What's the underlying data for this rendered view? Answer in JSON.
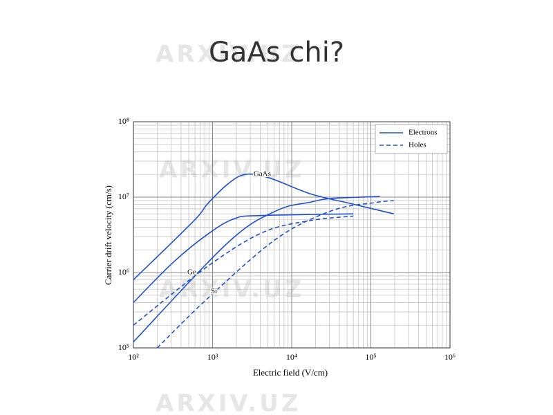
{
  "title": "GaAs chi?",
  "watermark": "ARXIV.UZ",
  "chart_data": {
    "type": "line",
    "xscale": "log",
    "yscale": "log",
    "x_label": "Electric field (V/cm)",
    "y_label": "Carrier drift velocity (cm/s)",
    "xlim": [
      100,
      1000000
    ],
    "ylim": [
      100000,
      100000000
    ],
    "xticks": [
      {
        "value": 100,
        "label": "10²"
      },
      {
        "value": 1000,
        "label": "10³"
      },
      {
        "value": 10000,
        "label": "10⁴"
      },
      {
        "value": 100000,
        "label": "10⁵"
      },
      {
        "value": 1000000,
        "label": "10⁶"
      }
    ],
    "yticks": [
      {
        "value": 100000,
        "label": "10⁵"
      },
      {
        "value": 1000000,
        "label": "10⁶"
      },
      {
        "value": 10000000,
        "label": "10⁷"
      },
      {
        "value": 100000000,
        "label": "10⁸"
      }
    ],
    "grid": true,
    "color": "#1f4fd0",
    "legend_position": "upper right",
    "legend": [
      {
        "name": "Electrons",
        "dashed": false
      },
      {
        "name": "Holes",
        "dashed": true
      }
    ],
    "series": [
      {
        "dashed": false,
        "x": [
          100,
          575,
          860,
          1570,
          2600,
          5200,
          17500,
          59000,
          195000
        ],
        "values": [
          800000,
          4800000,
          8100000,
          15000000,
          20000000,
          18000000,
          11000000,
          8100000,
          6000000
        ]
      },
      {
        "dashed": false,
        "x": [
          100,
          315,
          860,
          1900,
          4300,
          60000
        ],
        "values": [
          400000,
          1350000,
          3200000,
          5200000,
          5700000,
          6000000
        ]
      },
      {
        "dashed": false,
        "x": [
          100,
          1570,
          6400,
          17500,
          32000,
          130000
        ],
        "values": [
          120000,
          2500000,
          6600000,
          8600000,
          9600000,
          10200000
        ]
      },
      {
        "dashed": true,
        "x": [
          100,
          860,
          4300,
          17500,
          60000
        ],
        "values": [
          200000,
          1200000,
          3400000,
          4900000,
          5600000
        ]
      },
      {
        "dashed": true,
        "x": [
          200,
          860,
          6400,
          32000,
          107000,
          195000
        ],
        "values": [
          100000,
          450000,
          2800000,
          6600000,
          8400000,
          9000000
        ]
      }
    ],
    "annotations": [
      {
        "text": "GaAs",
        "x": 3300,
        "y": 20000000
      },
      {
        "text": "Ge",
        "x": 480,
        "y": 1000000
      },
      {
        "text": "Si",
        "x": 950,
        "y": 560000
      }
    ]
  }
}
